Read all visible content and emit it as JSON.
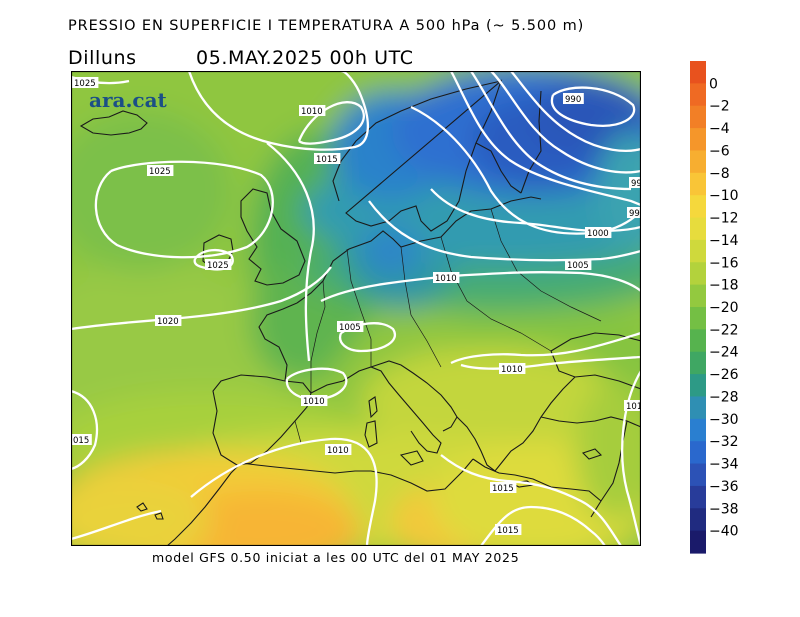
{
  "header": {
    "title": "PRESSIO EN SUPERFICIE I TEMPERATURA A 500 hPa (~ 5.500 m)",
    "day": "Dilluns",
    "datetime": "05.MAY.2025 00h UTC"
  },
  "footer": {
    "text": "model GFS 0.50 iniciat a les 00 UTC del 01 MAY 2025"
  },
  "logo": {
    "text": "ara.cat",
    "color": "#1b4f86"
  },
  "colorbar": {
    "labels": [
      "0",
      "−2",
      "−4",
      "−6",
      "−8",
      "−10",
      "−12",
      "−14",
      "−16",
      "−18",
      "−20",
      "−22",
      "−24",
      "−26",
      "−28",
      "−30",
      "−32",
      "−34",
      "−36",
      "−38",
      "−40"
    ],
    "colors": [
      "#e8521e",
      "#ef6a23",
      "#f27f26",
      "#f5962a",
      "#f7ae30",
      "#f9c537",
      "#f5d83c",
      "#e7dc3d",
      "#cfd93c",
      "#b3d23c",
      "#93c93f",
      "#74bf44",
      "#56b34e",
      "#3fa763",
      "#2d9a86",
      "#2f8fb3",
      "#2a7fd0",
      "#2a68cd",
      "#2c52b6",
      "#283c9a",
      "#202b80",
      "#1a1a6a"
    ]
  },
  "isobars": [
    {
      "label": "1025",
      "kind": "clipped"
    },
    {
      "label": "1010"
    },
    {
      "label": "1015"
    },
    {
      "label": "990"
    },
    {
      "label": "99",
      "kind": "clipped"
    },
    {
      "label": "99",
      "kind": "clipped"
    },
    {
      "label": "1025"
    },
    {
      "label": "1025"
    },
    {
      "label": "1000"
    },
    {
      "label": "1005"
    },
    {
      "label": "1010"
    },
    {
      "label": "1020"
    },
    {
      "label": "1005"
    },
    {
      "label": "1010"
    },
    {
      "label": "1010"
    },
    {
      "label": "101",
      "kind": "clipped"
    },
    {
      "label": "015",
      "kind": "clipped"
    },
    {
      "label": "1010"
    },
    {
      "label": "1015"
    },
    {
      "label": "1015"
    }
  ]
}
